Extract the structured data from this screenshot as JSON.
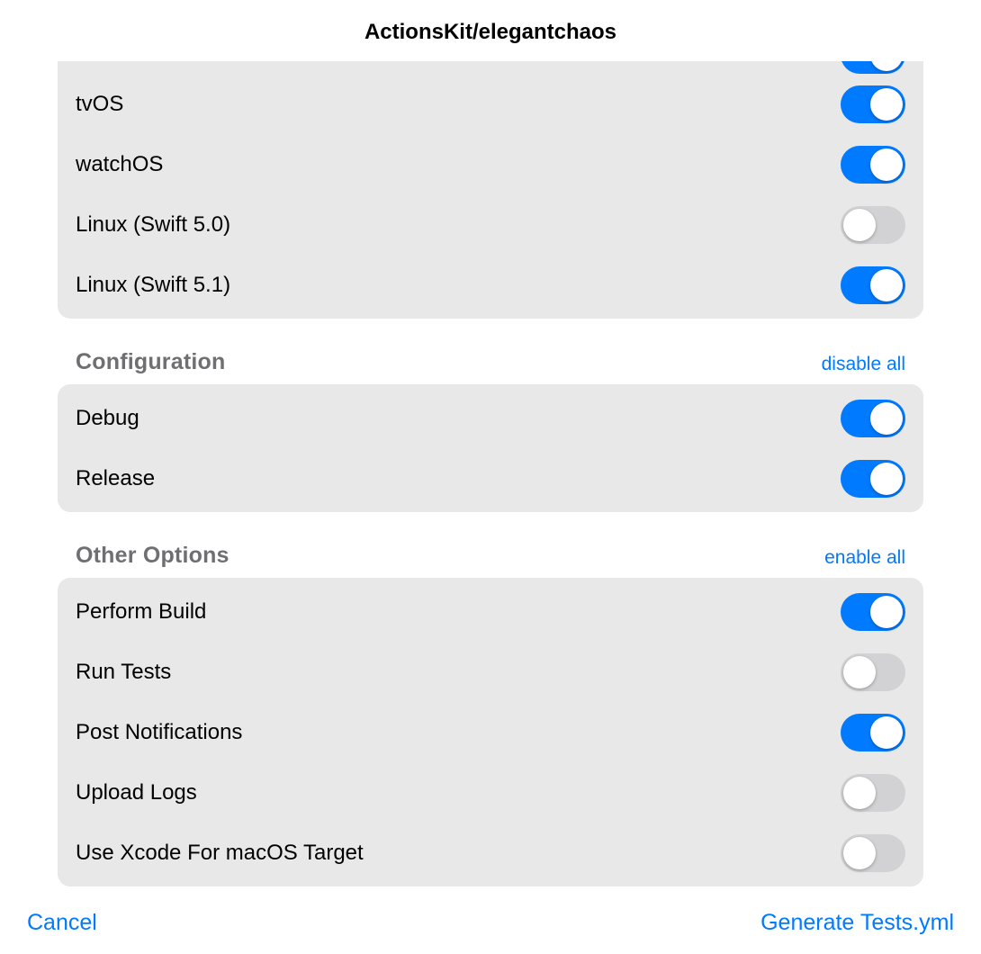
{
  "colors": {
    "accent": "#007aff",
    "toggle_off": "#d2d2d4",
    "card_bg": "#e8e8e9",
    "section_title": "#6f6f73",
    "text": "#000000",
    "page_bg": "#ffffff"
  },
  "header": {
    "title": "ActionsKit/elegantchaos"
  },
  "platforms": {
    "items": [
      {
        "label": "tvOS",
        "on": true
      },
      {
        "label": "watchOS",
        "on": true
      },
      {
        "label": "Linux (Swift 5.0)",
        "on": false
      },
      {
        "label": "Linux (Swift 5.1)",
        "on": true
      }
    ],
    "peek_on": true
  },
  "configuration": {
    "title": "Configuration",
    "action": "disable all",
    "items": [
      {
        "label": "Debug",
        "on": true
      },
      {
        "label": "Release",
        "on": true
      }
    ]
  },
  "other": {
    "title": "Other Options",
    "action": "enable all",
    "items": [
      {
        "label": "Perform Build",
        "on": true
      },
      {
        "label": "Run Tests",
        "on": false
      },
      {
        "label": "Post Notifications",
        "on": true
      },
      {
        "label": "Upload Logs",
        "on": false
      },
      {
        "label": "Use Xcode For macOS Target",
        "on": false
      }
    ]
  },
  "footer": {
    "cancel": "Cancel",
    "confirm": "Generate Tests.yml"
  }
}
